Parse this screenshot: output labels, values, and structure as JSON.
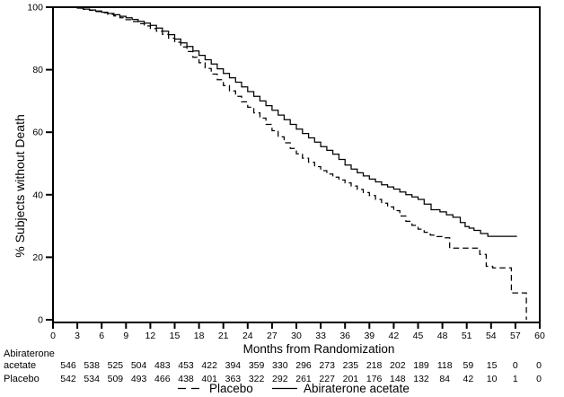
{
  "figure": {
    "background": "#ffffff",
    "line_color": "#000000",
    "text_color": "#000000"
  },
  "chart_data": {
    "type": "line",
    "subtype": "kaplan_meier_step",
    "title": "",
    "xlabel": "Months from Randomization",
    "ylabel": "% Subjects without Death",
    "xlim": [
      0,
      60
    ],
    "ylim": [
      0,
      100
    ],
    "xticks": [
      0,
      3,
      6,
      9,
      12,
      15,
      18,
      21,
      24,
      27,
      30,
      33,
      36,
      39,
      42,
      45,
      48,
      51,
      54,
      57,
      60
    ],
    "yticks": [
      0,
      20,
      40,
      60,
      80,
      100
    ],
    "grid": false,
    "frame": true,
    "legend": {
      "position": "bottom-center",
      "entries": [
        {
          "label": "Placebo",
          "line_style": "dashed"
        },
        {
          "label": "Abiraterone acetate",
          "line_style": "solid"
        }
      ]
    },
    "series": [
      {
        "name": "Placebo",
        "line_style": "dashed",
        "color": "#000000",
        "points": [
          [
            0,
            100
          ],
          [
            3,
            99.7
          ],
          [
            3.75,
            99.3
          ],
          [
            4.5,
            99
          ],
          [
            5.25,
            98.6
          ],
          [
            6,
            98.2
          ],
          [
            6.75,
            97.7
          ],
          [
            7.5,
            97.2
          ],
          [
            8.25,
            96.6
          ],
          [
            9,
            96
          ],
          [
            9.75,
            95.4
          ],
          [
            10.5,
            94.7
          ],
          [
            11.25,
            94
          ],
          [
            12,
            93.2
          ],
          [
            12.75,
            92.3
          ],
          [
            13.5,
            91.3
          ],
          [
            14.25,
            90.1
          ],
          [
            15,
            88.8
          ],
          [
            15.75,
            87.3
          ],
          [
            16.5,
            85.8
          ],
          [
            17.25,
            84
          ],
          [
            18,
            82.2
          ],
          [
            18.75,
            80.4
          ],
          [
            19.5,
            78.6
          ],
          [
            20.25,
            76.8
          ],
          [
            21,
            74.9
          ],
          [
            21.75,
            73.2
          ],
          [
            22.5,
            71.5
          ],
          [
            23.25,
            69.7
          ],
          [
            24,
            68
          ],
          [
            24.75,
            66.2
          ],
          [
            25.5,
            64.5
          ],
          [
            26.25,
            62.5
          ],
          [
            27,
            60.5
          ],
          [
            27.75,
            58.5
          ],
          [
            28.5,
            56.6
          ],
          [
            29.25,
            54.8
          ],
          [
            30,
            53.1
          ],
          [
            30.75,
            51.7
          ],
          [
            31.5,
            50.4
          ],
          [
            32.25,
            49
          ],
          [
            33,
            47.7
          ],
          [
            33.75,
            46.6
          ],
          [
            34.5,
            45.6
          ],
          [
            35.25,
            44.7
          ],
          [
            36,
            43.8
          ],
          [
            36.75,
            42.8
          ],
          [
            37.5,
            41.7
          ],
          [
            38.25,
            40.7
          ],
          [
            39,
            39.7
          ],
          [
            39.75,
            38.5
          ],
          [
            40.5,
            37.3
          ],
          [
            41.25,
            36.1
          ],
          [
            42,
            34.9
          ],
          [
            42.75,
            33.2
          ],
          [
            43.5,
            31.5
          ],
          [
            44.25,
            30.2
          ],
          [
            45,
            29
          ],
          [
            45.75,
            28
          ],
          [
            46.5,
            27.1
          ],
          [
            47.25,
            26.6
          ],
          [
            48,
            26.2
          ],
          [
            48.9,
            22.9
          ],
          [
            52.6,
            20.9
          ],
          [
            53.4,
            17.1
          ],
          [
            54.2,
            16.6
          ],
          [
            56.5,
            8.6
          ],
          [
            58.3,
            8.6
          ],
          [
            58.35,
            0
          ]
        ]
      },
      {
        "name": "Abiraterone acetate",
        "line_style": "solid",
        "color": "#000000",
        "points": [
          [
            0,
            100
          ],
          [
            3,
            99.7
          ],
          [
            3.75,
            99.4
          ],
          [
            4.5,
            99.1
          ],
          [
            5.25,
            98.8
          ],
          [
            6,
            98.4
          ],
          [
            6.75,
            98
          ],
          [
            7.5,
            97.6
          ],
          [
            8.25,
            97.1
          ],
          [
            9,
            96.6
          ],
          [
            9.75,
            96.1
          ],
          [
            10.5,
            95.5
          ],
          [
            11.25,
            94.9
          ],
          [
            12,
            94.2
          ],
          [
            12.75,
            93.3
          ],
          [
            13.5,
            92.3
          ],
          [
            14.25,
            91.2
          ],
          [
            15,
            89.8
          ],
          [
            15.75,
            88.6
          ],
          [
            16.5,
            87.4
          ],
          [
            17.25,
            86
          ],
          [
            18,
            84.6
          ],
          [
            18.75,
            83.2
          ],
          [
            19.5,
            81.8
          ],
          [
            20.25,
            80.3
          ],
          [
            21,
            78.8
          ],
          [
            21.75,
            77.4
          ],
          [
            22.5,
            76
          ],
          [
            23.25,
            74.5
          ],
          [
            24,
            73
          ],
          [
            24.75,
            71.5
          ],
          [
            25.5,
            70
          ],
          [
            26.25,
            68.5
          ],
          [
            27,
            67
          ],
          [
            27.75,
            65.5
          ],
          [
            28.5,
            64
          ],
          [
            29.25,
            62.5
          ],
          [
            30,
            61
          ],
          [
            30.75,
            59.6
          ],
          [
            31.5,
            58.2
          ],
          [
            32.25,
            56.8
          ],
          [
            33,
            55.4
          ],
          [
            33.75,
            54.2
          ],
          [
            34.5,
            53
          ],
          [
            35.25,
            51.3
          ],
          [
            36,
            49.5
          ],
          [
            36.75,
            48.2
          ],
          [
            37.5,
            47
          ],
          [
            38.25,
            46
          ],
          [
            39,
            45
          ],
          [
            39.75,
            44.1
          ],
          [
            40.5,
            43.2
          ],
          [
            41.25,
            42.5
          ],
          [
            42,
            41.8
          ],
          [
            42.75,
            40.9
          ],
          [
            43.5,
            40
          ],
          [
            44.25,
            39.3
          ],
          [
            45,
            38.5
          ],
          [
            45.75,
            37
          ],
          [
            46.6,
            35.2
          ],
          [
            47.7,
            34.5
          ],
          [
            48.5,
            33.6
          ],
          [
            49.3,
            32.8
          ],
          [
            50.2,
            31.1
          ],
          [
            50.8,
            29.8
          ],
          [
            51.3,
            29.3
          ],
          [
            51.9,
            28.6
          ],
          [
            52.7,
            27.6
          ],
          [
            53.6,
            26.7
          ],
          [
            57.2,
            26.7
          ]
        ]
      }
    ],
    "at_risk_table": {
      "months": [
        0,
        3,
        6,
        9,
        12,
        15,
        18,
        21,
        24,
        27,
        30,
        33,
        36,
        39,
        42,
        45,
        48,
        51,
        54,
        57,
        60
      ],
      "rows": [
        {
          "label_lines": [
            "Abiraterone",
            "acetate"
          ],
          "counts": [
            546,
            538,
            525,
            504,
            483,
            453,
            422,
            394,
            359,
            330,
            296,
            273,
            235,
            218,
            202,
            189,
            118,
            59,
            15,
            0,
            0
          ]
        },
        {
          "label_lines": [
            "Placebo"
          ],
          "counts": [
            542,
            534,
            509,
            493,
            466,
            438,
            401,
            363,
            322,
            292,
            261,
            227,
            201,
            176,
            148,
            132,
            84,
            42,
            10,
            1,
            0
          ]
        }
      ]
    }
  }
}
